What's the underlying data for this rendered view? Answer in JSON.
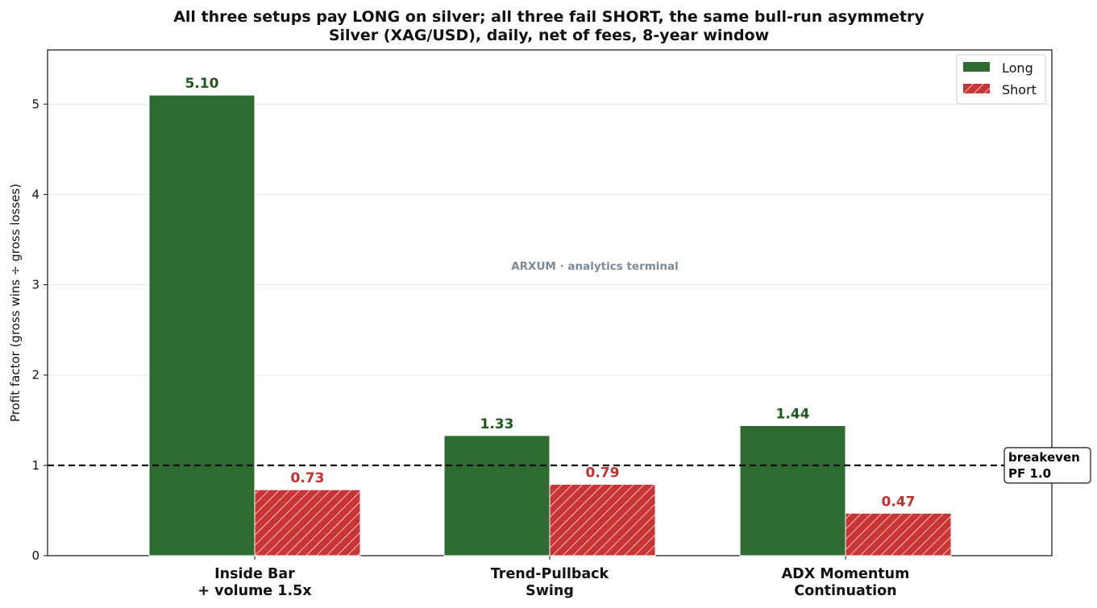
{
  "colors": {
    "long": "#2e6b30",
    "long_label": "#1e5a20",
    "short": "#c93434",
    "short_label": "#c0302c",
    "grid": "#e6e6e6",
    "breakeven": "#111111",
    "watermark": "#7a8a99"
  },
  "chart_data": {
    "type": "bar",
    "title": "All three setups pay LONG on silver; all three fail SHORT, the same bull-run asymmetry",
    "subtitle": "Silver (XAG/USD), daily, net of fees, 8-year window",
    "ylabel": "Profit factor (gross wins ÷ gross losses)",
    "xlabel": "",
    "categories": [
      [
        "Inside Bar",
        "+ volume 1.5x"
      ],
      [
        "Trend-Pullback",
        "Swing"
      ],
      [
        "ADX Momentum",
        "Continuation"
      ]
    ],
    "series": [
      {
        "name": "Long",
        "values": [
          5.1,
          1.33,
          1.44
        ],
        "labels": [
          "5.10",
          "1.33",
          "1.44"
        ],
        "pattern": "solid"
      },
      {
        "name": "Short",
        "values": [
          0.73,
          0.79,
          0.47
        ],
        "labels": [
          "0.73",
          "0.79",
          "0.47"
        ],
        "pattern": "hatched"
      }
    ],
    "ylim": [
      0,
      5.6
    ],
    "yticks": [
      0,
      1,
      2,
      3,
      4,
      5
    ],
    "grid": true,
    "legend_position": "top-right",
    "reference_line": {
      "value": 1.0,
      "style": "dashed",
      "label_lines": [
        "breakeven",
        "PF 1.0"
      ]
    },
    "watermark": "ARXUM · analytics terminal"
  }
}
